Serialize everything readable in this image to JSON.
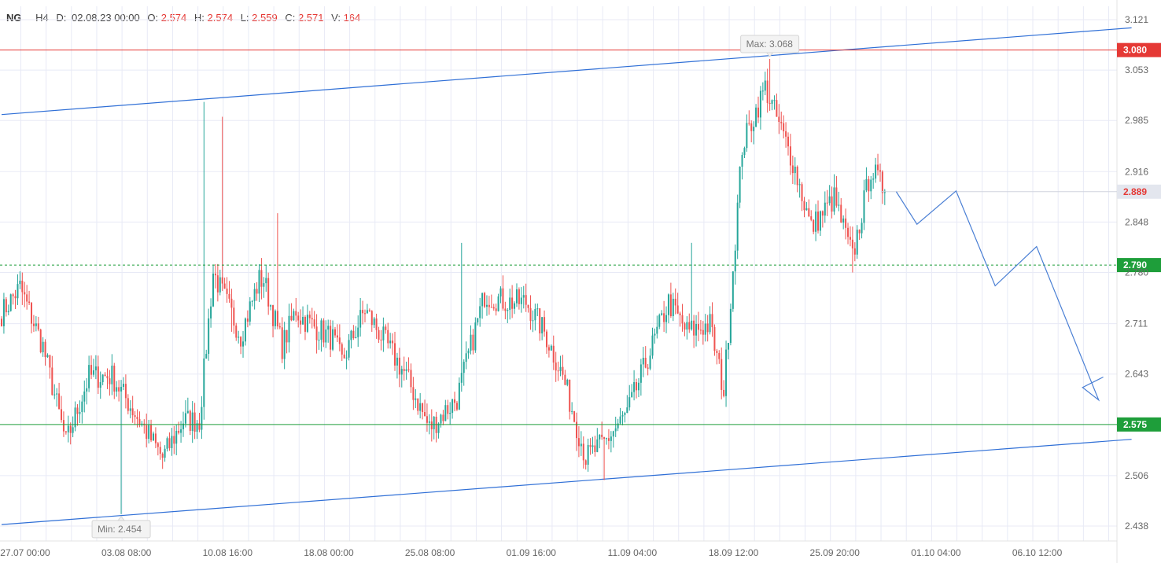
{
  "header": {
    "symbol": "NG",
    "timeframe": "H4",
    "date_label": "D:",
    "date_value": "02.08.23 00:00",
    "open_label": "O:",
    "open_value": "2.574",
    "high_label": "H:",
    "high_value": "2.574",
    "low_label": "L:",
    "low_value": "2.559",
    "close_label": "C:",
    "close_value": "2.571",
    "volume_label": "V:",
    "volume_value": "164"
  },
  "chart_data": {
    "type": "candlestick",
    "y_range": [
      2.4,
      3.15
    ],
    "y_ticks": [
      {
        "value": 3.121,
        "label": "3.121"
      },
      {
        "value": 3.053,
        "label": "3.053"
      },
      {
        "value": 2.985,
        "label": "2.985"
      },
      {
        "value": 2.916,
        "label": "2.916"
      },
      {
        "value": 2.848,
        "label": "2.848"
      },
      {
        "value": 2.78,
        "label": "2.780"
      },
      {
        "value": 2.711,
        "label": "2.711"
      },
      {
        "value": 2.643,
        "label": "2.643"
      },
      {
        "value": 2.506,
        "label": "2.506"
      },
      {
        "value": 2.438,
        "label": "2.438"
      }
    ],
    "x_ticks": [
      "27.07 00:00",
      "03.08 08:00",
      "10.08 16:00",
      "18.08 00:00",
      "25.08 08:00",
      "01.09 16:00",
      "11.09 04:00",
      "18.09 12:00",
      "25.09 20:00",
      "01.10 04:00",
      "06.10 12:00"
    ],
    "x_tick_index": [
      0,
      44,
      88,
      132,
      176,
      220,
      264,
      308,
      352,
      396,
      440
    ],
    "candles_per_x_tick": 44,
    "total_slots": 490,
    "waypoints": [
      {
        "i": 0,
        "p": 2.725
      },
      {
        "i": 8,
        "p": 2.76
      },
      {
        "i": 18,
        "p": 2.68
      },
      {
        "i": 28,
        "p": 2.55
      },
      {
        "i": 38,
        "p": 2.64
      },
      {
        "i": 48,
        "p": 2.64
      },
      {
        "i": 60,
        "p": 2.58
      },
      {
        "i": 70,
        "p": 2.53
      },
      {
        "i": 79,
        "p": 2.58
      },
      {
        "i": 86,
        "p": 2.58
      },
      {
        "i": 92,
        "p": 2.78
      },
      {
        "i": 104,
        "p": 2.695
      },
      {
        "i": 112,
        "p": 2.77
      },
      {
        "i": 114,
        "p": 2.77
      },
      {
        "i": 122,
        "p": 2.68
      },
      {
        "i": 128,
        "p": 2.73
      },
      {
        "i": 130,
        "p": 2.72
      },
      {
        "i": 144,
        "p": 2.69
      },
      {
        "i": 148,
        "p": 2.66
      },
      {
        "i": 158,
        "p": 2.73
      },
      {
        "i": 166,
        "p": 2.69
      },
      {
        "i": 176,
        "p": 2.64
      },
      {
        "i": 186,
        "p": 2.57
      },
      {
        "i": 198,
        "p": 2.61
      },
      {
        "i": 210,
        "p": 2.75
      },
      {
        "i": 220,
        "p": 2.74
      },
      {
        "i": 228,
        "p": 2.74
      },
      {
        "i": 236,
        "p": 2.7
      },
      {
        "i": 244,
        "p": 2.64
      },
      {
        "i": 254,
        "p": 2.53
      },
      {
        "i": 262,
        "p": 2.55
      },
      {
        "i": 272,
        "p": 2.59
      },
      {
        "i": 290,
        "p": 2.74
      },
      {
        "i": 298,
        "p": 2.7
      },
      {
        "i": 308,
        "p": 2.71
      },
      {
        "i": 314,
        "p": 2.62
      },
      {
        "i": 322,
        "p": 2.95
      },
      {
        "i": 332,
        "p": 3.03
      },
      {
        "i": 344,
        "p": 2.93
      },
      {
        "i": 352,
        "p": 2.84
      },
      {
        "i": 362,
        "p": 2.88
      },
      {
        "i": 370,
        "p": 2.8
      },
      {
        "i": 378,
        "p": 2.92
      },
      {
        "i": 384,
        "p": 2.89
      }
    ],
    "overrides": [
      {
        "i": 88,
        "h": 3.01
      },
      {
        "i": 96,
        "h": 2.99
      },
      {
        "i": 100,
        "l": 2.7
      },
      {
        "i": 52,
        "l": 2.454
      },
      {
        "i": 120,
        "h": 2.86
      },
      {
        "i": 200,
        "h": 2.82
      },
      {
        "i": 262,
        "l": 2.5
      },
      {
        "i": 300,
        "h": 2.82
      },
      {
        "i": 334,
        "h": 3.068
      },
      {
        "i": 370,
        "l": 2.78
      },
      {
        "i": 381,
        "h": 2.94
      }
    ],
    "channel_upper": {
      "from": {
        "i": 0,
        "p": 2.993
      },
      "to": {
        "i": 492,
        "p": 3.11
      }
    },
    "channel_lower": {
      "from": {
        "i": 0,
        "p": 2.44
      },
      "to": {
        "i": 492,
        "p": 2.555
      }
    },
    "forecast_path": [
      {
        "i": 389,
        "p": 2.889
      },
      {
        "i": 398,
        "p": 2.845
      },
      {
        "i": 415,
        "p": 2.89
      },
      {
        "i": 432,
        "p": 2.762
      },
      {
        "i": 450,
        "p": 2.815
      },
      {
        "i": 477,
        "p": 2.608
      },
      {
        "i": 470,
        "p": 2.625
      },
      {
        "i": 479,
        "p": 2.639
      }
    ],
    "horizontal_levels": [
      {
        "value": 3.08,
        "label": "3.080",
        "color": "#e53935",
        "style": "solid"
      },
      {
        "value": 2.79,
        "label": "2.790",
        "color": "#1e9e3a",
        "style": "dashed"
      },
      {
        "value": 2.575,
        "label": "2.575",
        "color": "#1e9e3a",
        "style": "solid"
      }
    ],
    "current_price": {
      "value": 2.889,
      "label": "2.889"
    },
    "max_marker": {
      "i": 334,
      "value": 3.068,
      "label": "Max: 3.068"
    },
    "min_marker": {
      "i": 52,
      "value": 2.454,
      "label": "Min: 2.454"
    },
    "colors": {
      "bull": "#26a69a",
      "bear": "#ef5350",
      "grid": "#e8eaf6",
      "channel": "#2f6fd6",
      "forecast": "#4a7fd4",
      "current_tag_bg": "#e3e6ee",
      "current_tag_fg": "#e53935"
    }
  }
}
